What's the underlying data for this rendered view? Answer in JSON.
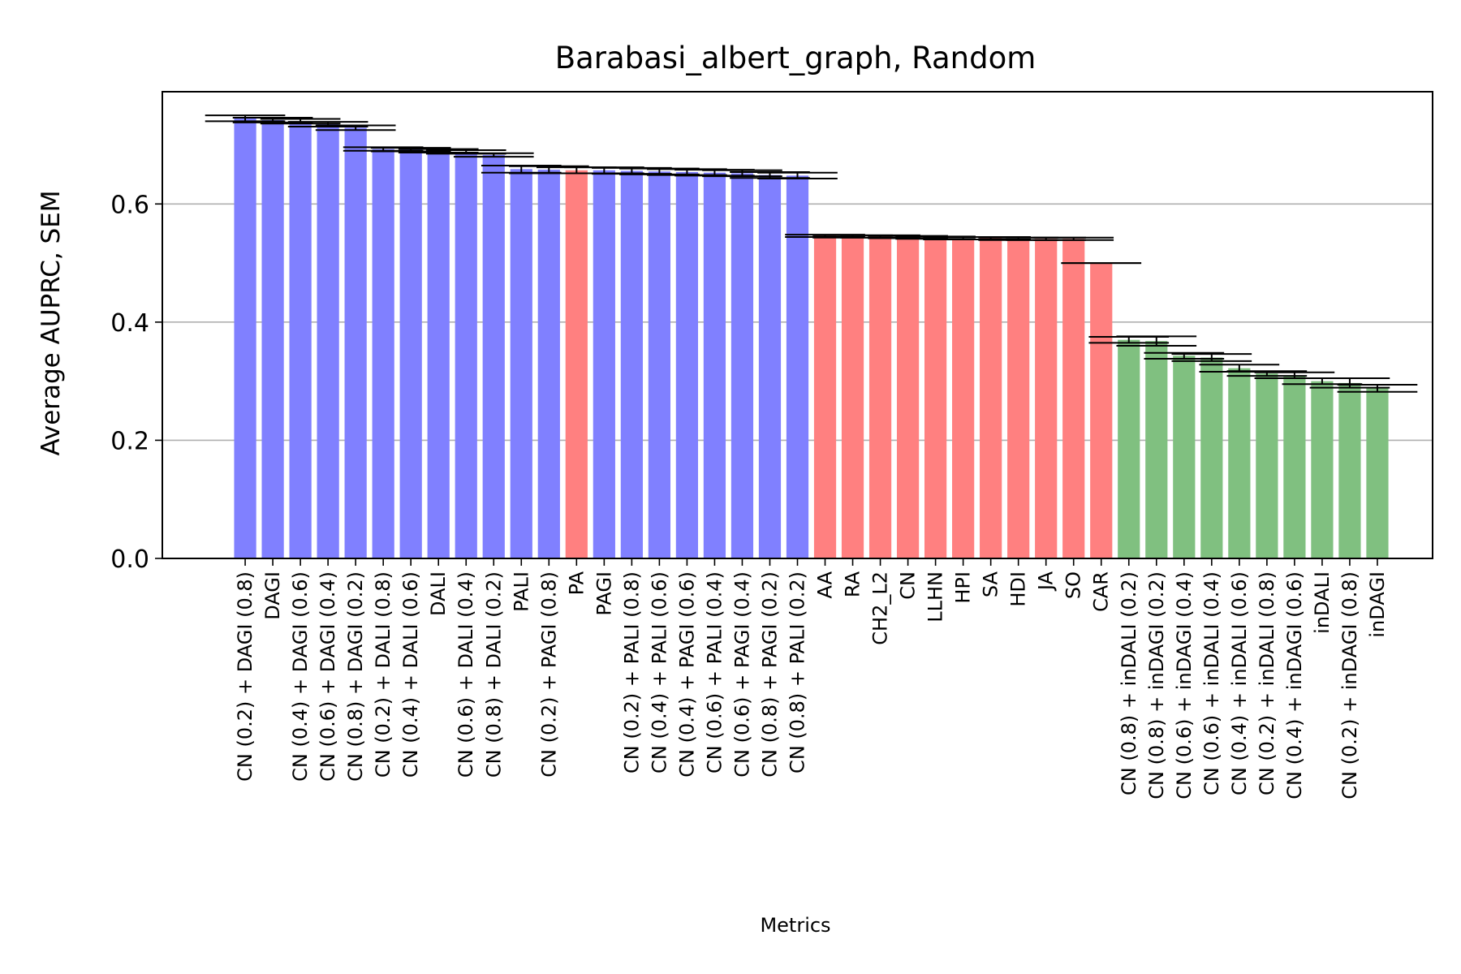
{
  "chart_data": {
    "type": "bar",
    "title": "Barabasi_albert_graph, Random",
    "xlabel": "Metrics",
    "ylabel": "Average AUPRC, SEM",
    "ylim": [
      0,
      0.79
    ],
    "yticks": [
      "0.0",
      "0.2",
      "0.4",
      "0.6"
    ],
    "ytick_values": [
      0.0,
      0.2,
      0.4,
      0.6
    ],
    "grid": "y",
    "legend": "none",
    "colors": {
      "blue": "#8080ff",
      "red": "#ff8080",
      "green": "#80c080",
      "err": "#000000",
      "grid": "#b0b0b0"
    },
    "categories": [
      "CN (0.2) + DAGI (0.8)",
      "DAGI",
      "CN (0.4) + DAGI (0.6)",
      "CN (0.6) + DAGI (0.4)",
      "CN (0.8) + DAGI (0.2)",
      "CN (0.2) + DALI (0.8)",
      "CN (0.4) + DALI (0.6)",
      "DALI",
      "CN (0.6) + DALI (0.4)",
      "CN (0.8) + DALI (0.2)",
      "PALI",
      "CN (0.2) + PAGI (0.8)",
      "PA",
      "PAGI",
      "CN (0.2) + PALI (0.8)",
      "CN (0.4) + PALI (0.6)",
      "CN (0.4) + PAGI (0.6)",
      "CN (0.6) + PALI (0.4)",
      "CN (0.6) + PAGI (0.4)",
      "CN (0.8) + PAGI (0.2)",
      "CN (0.8) + PALI (0.2)",
      "AA",
      "RA",
      "CH2_L2",
      "CN",
      "LLHN",
      "HPI",
      "SA",
      "HDI",
      "JA",
      "SO",
      "CAR",
      "CN (0.8) + inDALI (0.2)",
      "CN (0.8) + inDAGI (0.2)",
      "CN (0.6) + inDAGI (0.4)",
      "CN (0.6) + inDALI (0.4)",
      "CN (0.4) + inDALI (0.6)",
      "CN (0.2) + inDALI (0.8)",
      "CN (0.4) + inDAGI (0.6)",
      "inDALI",
      "CN (0.2) + inDAGI (0.8)",
      "inDAGI"
    ],
    "values": [
      0.745,
      0.742,
      0.74,
      0.735,
      0.729,
      0.693,
      0.692,
      0.69,
      0.688,
      0.683,
      0.659,
      0.658,
      0.657,
      0.657,
      0.656,
      0.655,
      0.654,
      0.653,
      0.652,
      0.649,
      0.648,
      0.546,
      0.545,
      0.545,
      0.544,
      0.543,
      0.542,
      0.542,
      0.541,
      0.541,
      0.541,
      0.5,
      0.37,
      0.368,
      0.343,
      0.34,
      0.322,
      0.313,
      0.31,
      0.3,
      0.297,
      0.288
    ],
    "sem": [
      0.005,
      0.004,
      0.004,
      0.004,
      0.004,
      0.003,
      0.003,
      0.003,
      0.003,
      0.003,
      0.006,
      0.006,
      0.005,
      0.005,
      0.005,
      0.005,
      0.005,
      0.005,
      0.005,
      0.005,
      0.005,
      0.002,
      0.002,
      0.002,
      0.002,
      0.002,
      0.002,
      0.002,
      0.002,
      0.002,
      0.002,
      0.0,
      0.005,
      0.008,
      0.005,
      0.006,
      0.006,
      0.004,
      0.005,
      0.005,
      0.008,
      0.006
    ],
    "bar_colors": [
      "blue",
      "blue",
      "blue",
      "blue",
      "blue",
      "blue",
      "blue",
      "blue",
      "blue",
      "blue",
      "blue",
      "blue",
      "red",
      "blue",
      "blue",
      "blue",
      "blue",
      "blue",
      "blue",
      "blue",
      "blue",
      "red",
      "red",
      "red",
      "red",
      "red",
      "red",
      "red",
      "red",
      "red",
      "red",
      "red",
      "green",
      "green",
      "green",
      "green",
      "green",
      "green",
      "green",
      "green",
      "green",
      "green"
    ]
  }
}
